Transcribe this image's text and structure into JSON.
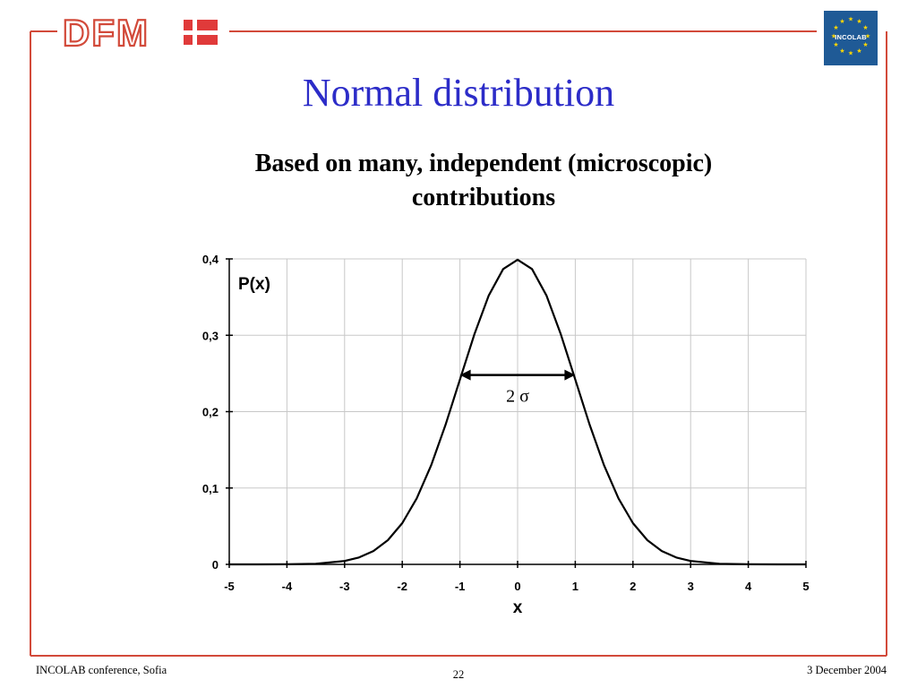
{
  "slide": {
    "title": "Normal distribution",
    "subtitle_line1": "Based on many, independent (microscopic)",
    "subtitle_line2": "contributions",
    "page_number": "22",
    "footer_left": "INCOLAB conference, Sofia",
    "footer_right": "3 December 2004"
  },
  "logos": {
    "left_text": "DFM",
    "right_text": "INCOLAB",
    "left_icon": "danish-flag-icon",
    "right_icon": "eu-stars-icon"
  },
  "colors": {
    "frame": "#d24a3a",
    "title": "#2c2cc8",
    "flag_red": "#e03a3a",
    "eu_blue": "#1f5a96",
    "star": "#ffd700"
  },
  "chart_data": {
    "type": "line",
    "xlabel": "x",
    "ylabel": "P(x)",
    "xlim": [
      -5,
      5
    ],
    "ylim": [
      0,
      0.4
    ],
    "x_ticks": [
      "-5",
      "-4",
      "-3",
      "-2",
      "-1",
      "0",
      "1",
      "2",
      "3",
      "4",
      "5"
    ],
    "y_ticks": [
      "0",
      "0,1",
      "0,2",
      "0,3",
      "0,4"
    ],
    "grid": true,
    "series": [
      {
        "x": [
          -5,
          -4.5,
          -4,
          -3.5,
          -3,
          -2.75,
          -2.5,
          -2.25,
          -2,
          -1.75,
          -1.5,
          -1.25,
          -1,
          -0.75,
          -0.5,
          -0.25,
          0,
          0.25,
          0.5,
          0.75,
          1,
          1.25,
          1.5,
          1.75,
          2,
          2.25,
          2.5,
          2.75,
          3,
          3.5,
          4,
          4.5,
          5
        ],
        "y": [
          1.5e-06,
          1.6e-05,
          0.000134,
          0.000873,
          0.00443,
          0.00909,
          0.0175,
          0.0317,
          0.054,
          0.0863,
          0.1295,
          0.1826,
          0.242,
          0.3011,
          0.3521,
          0.3867,
          0.3989,
          0.3867,
          0.3521,
          0.3011,
          0.242,
          0.1826,
          0.1295,
          0.0863,
          0.054,
          0.0317,
          0.0175,
          0.00909,
          0.00443,
          0.000873,
          0.000134,
          1.6e-05,
          1.5e-06
        ]
      }
    ],
    "annotation": {
      "text": "2 σ",
      "x_from": -1,
      "x_to": 1,
      "y": 0.248
    }
  }
}
